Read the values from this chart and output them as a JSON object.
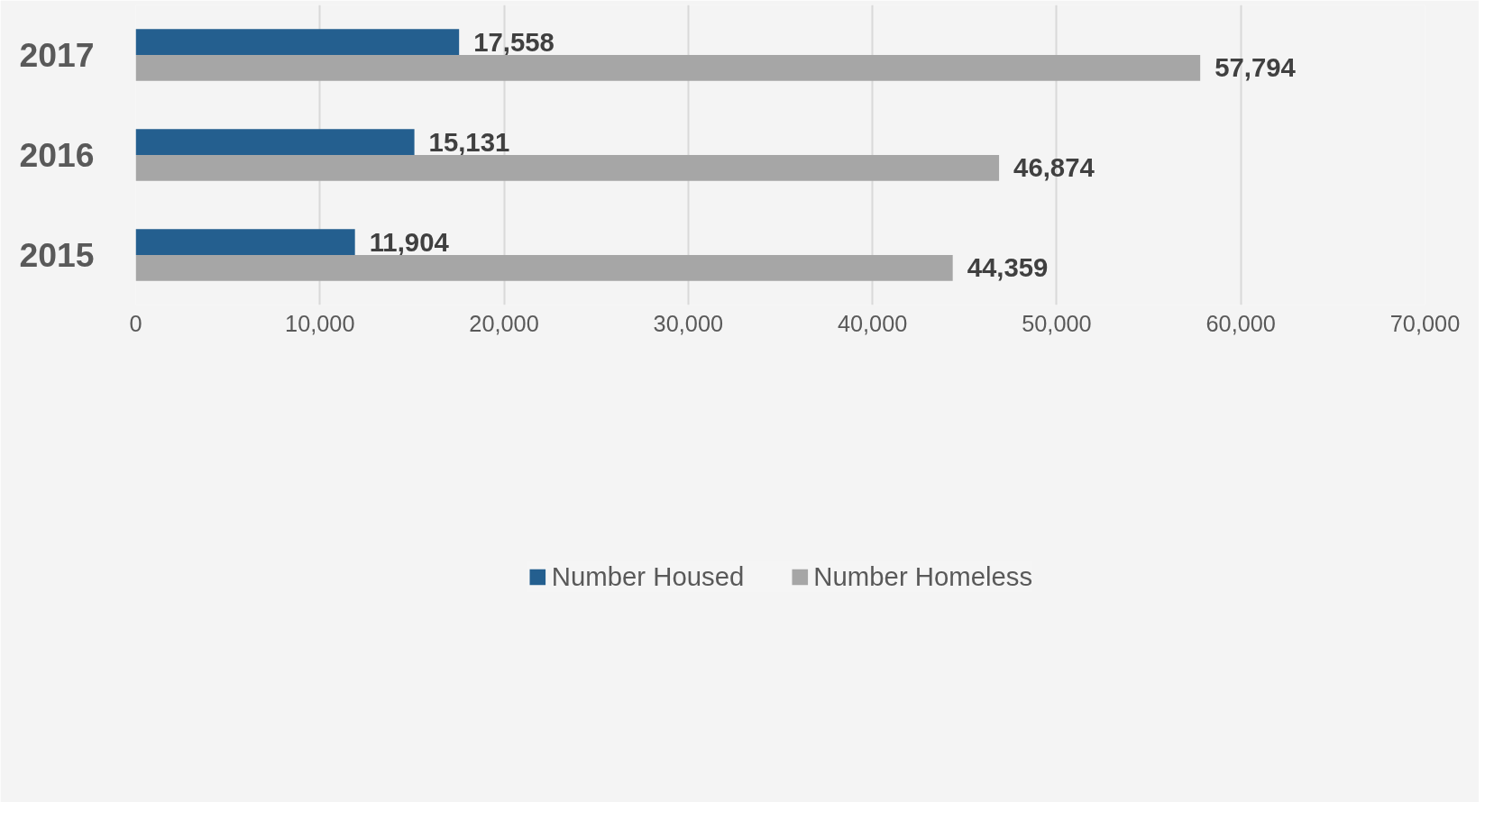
{
  "chart_data": {
    "type": "bar",
    "orientation": "horizontal",
    "categories": [
      "2017",
      "2016",
      "2015"
    ],
    "series": [
      {
        "name": "Number Housed",
        "color": "#245f8f",
        "values": [
          17558,
          15131,
          11904
        ],
        "value_labels": [
          "17,558",
          "15,131",
          "11,904"
        ]
      },
      {
        "name": "Number Homeless",
        "color": "#a6a6a6",
        "values": [
          57794,
          46874,
          44359
        ],
        "value_labels": [
          "57,794",
          "46,874",
          "44,359"
        ]
      }
    ],
    "xlim": [
      0,
      70000
    ],
    "xticks": [
      0,
      {
        "value": 10000,
        "label": "10,000"
      },
      {
        "value": 20000,
        "label": "20,000"
      },
      {
        "value": 30000,
        "label": "30,000"
      },
      {
        "value": 40000,
        "label": "40,000"
      },
      {
        "value": 50000,
        "label": "50,000"
      },
      {
        "value": 60000,
        "label": "60,000"
      },
      {
        "value": 70000,
        "label": "70,000"
      }
    ],
    "grid": "x",
    "legend": "bottom"
  }
}
